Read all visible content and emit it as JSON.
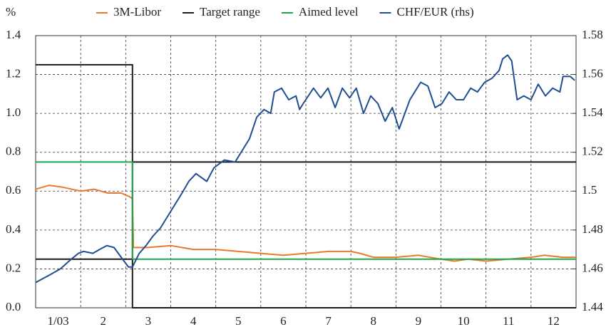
{
  "chart_data": {
    "type": "line",
    "y_label": "%",
    "xlim": [
      0,
      12
    ],
    "xticks": [
      {
        "value": 0.5,
        "label": "1/03"
      },
      {
        "value": 1.5,
        "label": "2"
      },
      {
        "value": 2.5,
        "label": "3"
      },
      {
        "value": 3.5,
        "label": "4"
      },
      {
        "value": 4.5,
        "label": "5"
      },
      {
        "value": 5.5,
        "label": "6"
      },
      {
        "value": 6.5,
        "label": "7"
      },
      {
        "value": 7.5,
        "label": "8"
      },
      {
        "value": 8.5,
        "label": "9"
      },
      {
        "value": 9.5,
        "label": "10"
      },
      {
        "value": 10.5,
        "label": "11"
      },
      {
        "value": 11.5,
        "label": "12"
      }
    ],
    "xgrid": [
      1,
      2,
      3,
      4,
      5,
      6,
      7,
      8,
      9,
      10,
      11
    ],
    "ylim": [
      0,
      1.4
    ],
    "yticks": [
      {
        "value": 0,
        "label": "0.0"
      },
      0.2,
      0.4,
      0.6,
      0.8,
      {
        "value": 1,
        "label": "1.0"
      },
      1.2,
      1.4
    ],
    "y2lim": [
      1.44,
      1.58
    ],
    "y2ticks": [
      1.44,
      1.46,
      1.48,
      1.5,
      1.52,
      1.54,
      1.56,
      1.58
    ],
    "grid": true,
    "legend": "top",
    "series": [
      {
        "name": "3M-Libor",
        "color": "#e87a2e",
        "x": [
          0,
          0.3,
          0.6,
          1.0,
          1.3,
          1.6,
          1.9,
          2.1,
          2.15,
          2.17,
          2.5,
          3.0,
          3.5,
          4.0,
          4.5,
          5.0,
          5.5,
          6.0,
          6.5,
          7.0,
          7.2,
          7.5,
          8.0,
          8.5,
          9.0,
          9.3,
          9.6,
          10.0,
          10.5,
          11.0,
          11.3,
          11.7,
          12.0
        ],
        "values": [
          0.61,
          0.63,
          0.62,
          0.6,
          0.61,
          0.59,
          0.59,
          0.57,
          0.56,
          0.31,
          0.31,
          0.32,
          0.3,
          0.3,
          0.29,
          0.28,
          0.27,
          0.28,
          0.29,
          0.29,
          0.28,
          0.26,
          0.26,
          0.27,
          0.25,
          0.24,
          0.25,
          0.24,
          0.25,
          0.26,
          0.27,
          0.26,
          0.26
        ]
      },
      {
        "name": "Target range",
        "color": "#1a1a1a",
        "x": [
          0,
          2.15,
          2.15,
          12,
          12,
          0,
          2.15,
          2.15,
          2.15,
          12
        ],
        "values": [
          1.25,
          1.25,
          0,
          0,
          null,
          0.25,
          0.25,
          null,
          0.75,
          0.75
        ]
      },
      {
        "name": "Aimed level",
        "color": "#1aa84a",
        "x": [
          0,
          2.15,
          2.15,
          12
        ],
        "values": [
          0.75,
          0.75,
          0.25,
          0.25
        ]
      },
      {
        "name": "CHF/EUR (rhs)",
        "color": "#1f4e91",
        "axis": "y2",
        "x": [
          0,
          0.32,
          0.55,
          0.79,
          0.95,
          1.06,
          1.27,
          1.42,
          1.58,
          1.74,
          1.9,
          2.06,
          2.15,
          2.3,
          2.45,
          2.61,
          2.77,
          3.01,
          3.25,
          3.4,
          3.56,
          3.8,
          3.96,
          4.19,
          4.43,
          4.59,
          4.75,
          4.91,
          5.07,
          5.22,
          5.3,
          5.46,
          5.62,
          5.78,
          5.86,
          5.94,
          6.17,
          6.33,
          6.49,
          6.65,
          6.81,
          6.97,
          7.12,
          7.28,
          7.44,
          7.6,
          7.76,
          7.92,
          8.07,
          8.31,
          8.55,
          8.71,
          8.87,
          9.02,
          9.18,
          9.34,
          9.5,
          9.66,
          9.81,
          9.97,
          10.13,
          10.29,
          10.37,
          10.48,
          10.57,
          10.69,
          10.84,
          11.0,
          11.16,
          11.32,
          11.48,
          11.64,
          11.71,
          11.87,
          11.97
        ],
        "values": [
          1.453,
          1.457,
          1.46,
          1.465,
          1.468,
          1.469,
          1.468,
          1.47,
          1.472,
          1.471,
          1.466,
          1.461,
          1.461,
          1.468,
          1.472,
          1.477,
          1.481,
          1.49,
          1.499,
          1.505,
          1.509,
          1.505,
          1.512,
          1.516,
          1.515,
          1.521,
          1.527,
          1.538,
          1.542,
          1.54,
          1.551,
          1.553,
          1.547,
          1.549,
          1.542,
          1.545,
          1.553,
          1.548,
          1.553,
          1.543,
          1.553,
          1.548,
          1.553,
          1.54,
          1.549,
          1.545,
          1.536,
          1.543,
          1.532,
          1.547,
          1.556,
          1.554,
          1.543,
          1.545,
          1.551,
          1.547,
          1.547,
          1.553,
          1.551,
          1.556,
          1.558,
          1.562,
          1.568,
          1.57,
          1.567,
          1.547,
          1.549,
          1.547,
          1.555,
          1.549,
          1.553,
          1.551,
          1.559,
          1.559,
          1.557
        ]
      }
    ]
  }
}
